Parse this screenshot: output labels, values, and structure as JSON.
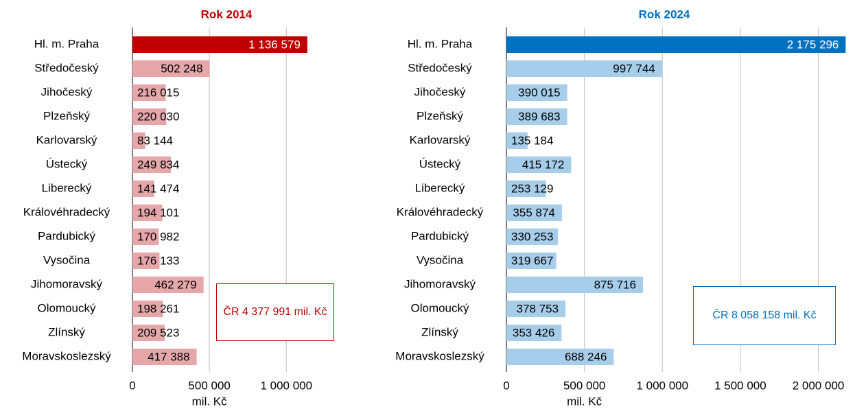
{
  "chart_data": [
    {
      "type": "bar",
      "orientation": "horizontal",
      "title": "Rok 2014",
      "title_color": "#c00000",
      "categories": [
        "Hl. m. Praha",
        "Středočeský",
        "Jihočeský",
        "Plzeňský",
        "Karlovarský",
        "Ústecký",
        "Liberecký",
        "Královéhradecký",
        "Pardubický",
        "Vysočina",
        "Jihomoravský",
        "Olomoucký",
        "Zlínský",
        "Moravskoslezský"
      ],
      "values": [
        1136579,
        502248,
        216015,
        220030,
        83144,
        249834,
        141474,
        194101,
        170982,
        176133,
        462279,
        198261,
        209523,
        417388
      ],
      "value_labels": [
        "1 136 579",
        "502 248",
        "216 015",
        "220 030",
        "83 144",
        "249 834",
        "141 474",
        "194 101",
        "170 982",
        "176 133",
        "462 279",
        "198 261",
        "209 523",
        "417 388"
      ],
      "colors": [
        "#c00000",
        "#e6a7aa",
        "#e6a7aa",
        "#e6a7aa",
        "#e6a7aa",
        "#e6a7aa",
        "#e6a7aa",
        "#e6a7aa",
        "#e6a7aa",
        "#e6a7aa",
        "#e6a7aa",
        "#e6a7aa",
        "#e6a7aa",
        "#e6a7aa"
      ],
      "xlim": [
        0,
        1400000
      ],
      "xticks": [
        0,
        {
          "value": 500000,
          "label": "500 000"
        },
        {
          "value": 1000000,
          "label": "1 000 000"
        }
      ],
      "xlabel": "mil. Kč",
      "grid": true,
      "annotation": "ČR 4 377 991 mil. Kč"
    },
    {
      "type": "bar",
      "orientation": "horizontal",
      "title": "Rok 2024",
      "title_color": "#0070c0",
      "categories": [
        "Hl. m. Praha",
        "Středočeský",
        "Jihočeský",
        "Plzeňský",
        "Karlovarský",
        "Ústecký",
        "Liberecký",
        "Královéhradecký",
        "Pardubický",
        "Vysočina",
        "Jihomoravský",
        "Olomoucký",
        "Zlínský",
        "Moravskoslezský"
      ],
      "values": [
        2175296,
        997744,
        390015,
        389683,
        135184,
        415172,
        253129,
        355874,
        330253,
        319667,
        875716,
        378753,
        353426,
        688246
      ],
      "value_labels": [
        "2 175 296",
        "997 744",
        "390 015",
        "389 683",
        "135 184",
        "415 172",
        "253 129",
        "355 874",
        "330 253",
        "319 667",
        "875 716",
        "378 753",
        "353 426",
        "688 246"
      ],
      "colors": [
        "#0070c0",
        "#a6cdea",
        "#a6cdea",
        "#a6cdea",
        "#a6cdea",
        "#a6cdea",
        "#a6cdea",
        "#a6cdea",
        "#a6cdea",
        "#a6cdea",
        "#a6cdea",
        "#a6cdea",
        "#a6cdea",
        "#a6cdea"
      ],
      "xlim": [
        0,
        2200000
      ],
      "xticks": [
        0,
        {
          "value": 500000,
          "label": "500 000"
        },
        {
          "value": 1000000,
          "label": "1 000 000"
        },
        {
          "value": 1500000,
          "label": "1 500 000"
        },
        {
          "value": 2000000,
          "label": "2 000 000"
        }
      ],
      "xlabel": "mil. Kč",
      "grid": true,
      "annotation": "ČR 8 058 158 mil. Kč"
    }
  ]
}
